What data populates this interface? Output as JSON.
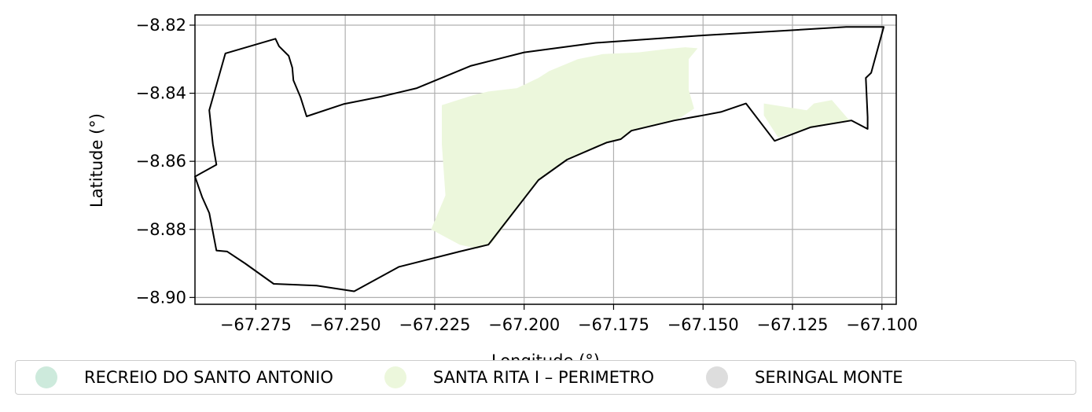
{
  "chart_data": {
    "type": "map",
    "xlabel": "Longitude (°)",
    "ylabel": "Latitude (°)",
    "xlim": [
      -67.292,
      -67.096
    ],
    "ylim": [
      -8.902,
      -8.817
    ],
    "grid": true,
    "x_ticks": [
      -67.275,
      -67.25,
      -67.225,
      -67.2,
      -67.175,
      -67.15,
      -67.125,
      -67.1
    ],
    "x_tick_labels": [
      "−67.275",
      "−67.250",
      "−67.225",
      "−67.200",
      "−67.175",
      "−67.150",
      "−67.125",
      "−67.100"
    ],
    "y_ticks": [
      -8.82,
      -8.84,
      -8.86,
      -8.88,
      -8.9
    ],
    "y_tick_labels": [
      "−8.82",
      "−8.84",
      "−8.86",
      "−8.88",
      "−8.90"
    ],
    "legend_placement": "bottom",
    "legend": [
      {
        "label": "RECREIO DO SANTO ANTONIO",
        "color": "#cdeadc"
      },
      {
        "label": "SANTA RITA I – PERIMETRO",
        "color": "#ecf7dc"
      },
      {
        "label": "SERINGAL MONTE",
        "color": "#dddddd"
      }
    ],
    "outline_polygon": [
      [
        -67.2835,
        -8.8283
      ],
      [
        -67.2695,
        -8.824
      ],
      [
        -67.2685,
        -8.8262
      ],
      [
        -67.2658,
        -8.829
      ],
      [
        -67.2648,
        -8.8325
      ],
      [
        -67.2645,
        -8.8362
      ],
      [
        -67.2625,
        -8.8412
      ],
      [
        -67.2608,
        -8.8468
      ],
      [
        -67.2505,
        -8.8432
      ],
      [
        -67.24,
        -8.841
      ],
      [
        -67.23,
        -8.8385
      ],
      [
        -67.215,
        -8.832
      ],
      [
        -67.2,
        -8.828
      ],
      [
        -67.18,
        -8.8252
      ],
      [
        -67.15,
        -8.823
      ],
      [
        -67.13,
        -8.8218
      ],
      [
        -67.11,
        -8.8205
      ],
      [
        -67.0995,
        -8.8205
      ],
      [
        -67.103,
        -8.834
      ],
      [
        -67.1045,
        -8.8355
      ],
      [
        -67.104,
        -8.847
      ],
      [
        -67.104,
        -8.8505
      ],
      [
        -67.1085,
        -8.848
      ],
      [
        -67.12,
        -8.85
      ],
      [
        -67.13,
        -8.854
      ],
      [
        -67.138,
        -8.843
      ],
      [
        -67.145,
        -8.8455
      ],
      [
        -67.15,
        -8.8465
      ],
      [
        -67.158,
        -8.848
      ],
      [
        -67.17,
        -8.851
      ],
      [
        -67.173,
        -8.8535
      ],
      [
        -67.177,
        -8.8545
      ],
      [
        -67.188,
        -8.8595
      ],
      [
        -67.196,
        -8.8655
      ],
      [
        -67.21,
        -8.8845
      ],
      [
        -67.218,
        -8.8865
      ],
      [
        -67.235,
        -8.891
      ],
      [
        -67.2475,
        -8.8982
      ],
      [
        -67.258,
        -8.8965
      ],
      [
        -67.27,
        -8.896
      ],
      [
        -67.278,
        -8.89
      ],
      [
        -67.283,
        -8.8865
      ],
      [
        -67.286,
        -8.8862
      ],
      [
        -67.288,
        -8.8752
      ],
      [
        -67.29,
        -8.8705
      ],
      [
        -67.292,
        -8.8645
      ],
      [
        -67.286,
        -8.861
      ],
      [
        -67.287,
        -8.855
      ],
      [
        -67.288,
        -8.845
      ],
      [
        -67.2835,
        -8.8283
      ]
    ],
    "santa_rita_polygons": [
      [
        [
          -67.223,
          -8.8435
        ],
        [
          -67.214,
          -8.8405
        ],
        [
          -67.21,
          -8.8395
        ],
        [
          -67.202,
          -8.8385
        ],
        [
          -67.196,
          -8.8355
        ],
        [
          -67.193,
          -8.8335
        ],
        [
          -67.185,
          -8.83
        ],
        [
          -67.178,
          -8.8285
        ],
        [
          -67.168,
          -8.828
        ],
        [
          -67.16,
          -8.827
        ],
        [
          -67.155,
          -8.8265
        ],
        [
          -67.1515,
          -8.8268
        ],
        [
          -67.154,
          -8.83
        ],
        [
          -67.154,
          -8.839
        ],
        [
          -67.1525,
          -8.8445
        ],
        [
          -67.156,
          -8.847
        ],
        [
          -67.158,
          -8.848
        ],
        [
          -67.17,
          -8.851
        ],
        [
          -67.173,
          -8.8535
        ],
        [
          -67.177,
          -8.8545
        ],
        [
          -67.188,
          -8.8595
        ],
        [
          -67.196,
          -8.8655
        ],
        [
          -67.209,
          -8.884
        ],
        [
          -67.213,
          -8.8857
        ],
        [
          -67.218,
          -8.8845
        ],
        [
          -67.226,
          -8.88
        ],
        [
          -67.222,
          -8.87
        ],
        [
          -67.223,
          -8.855
        ]
      ],
      [
        [
          -67.133,
          -8.843
        ],
        [
          -67.121,
          -8.845
        ],
        [
          -67.119,
          -8.843
        ],
        [
          -67.114,
          -8.842
        ],
        [
          -67.1095,
          -8.8475
        ],
        [
          -67.1085,
          -8.848
        ],
        [
          -67.12,
          -8.85
        ],
        [
          -67.129,
          -8.853
        ],
        [
          -67.133,
          -8.8465
        ]
      ]
    ]
  }
}
